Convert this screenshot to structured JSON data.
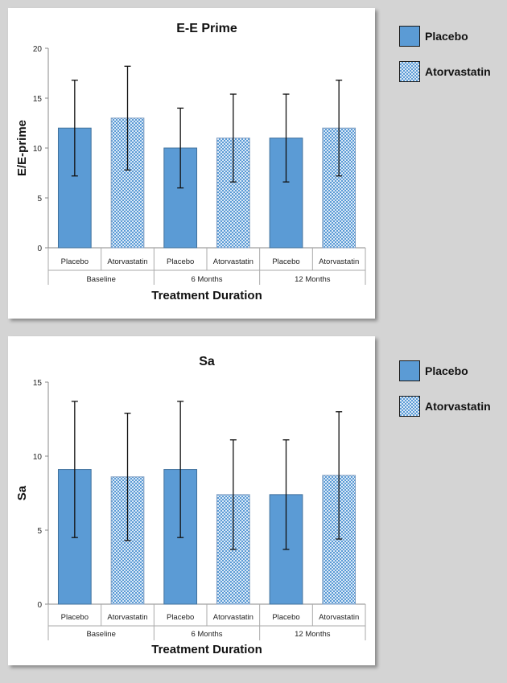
{
  "colors": {
    "placebo": "#5b9bd5",
    "placebo_edge": "#41719c",
    "atorvastatin_fill": "#dbe9f7",
    "atorvastatin_pattern": "#5b9bd5",
    "atorvastatin_edge": "#7f9dc1"
  },
  "legend": {
    "placebo_label": "Placebo",
    "atorvastatin_label": "Atorvastatin"
  },
  "chart_data": [
    {
      "type": "bar",
      "title": "E-E Prime",
      "xlabel": "Treatment Duration",
      "ylabel": "E/E-prime",
      "ylim": [
        0,
        20
      ],
      "yticks": [
        0,
        5,
        10,
        15,
        20
      ],
      "groups": [
        "Baseline",
        "6 Months",
        "12 Months"
      ],
      "categories": [
        "Placebo",
        "Atorvastatin",
        "Placebo",
        "Atorvastatin",
        "Placebo",
        "Atorvastatin"
      ],
      "series_order": [
        "placebo",
        "atorvastatin",
        "placebo",
        "atorvastatin",
        "placebo",
        "atorvastatin"
      ],
      "values": [
        12,
        13,
        10,
        11,
        11,
        12
      ],
      "error": [
        4.8,
        5.2,
        4.0,
        4.4,
        4.4,
        4.8
      ]
    },
    {
      "type": "bar",
      "title": "Sa",
      "xlabel": "Treatment Duration",
      "ylabel": "Sa",
      "ylim": [
        0,
        15
      ],
      "yticks": [
        0,
        5,
        10,
        15
      ],
      "groups": [
        "Baseline",
        "6 Months",
        "12 Months"
      ],
      "categories": [
        "Placebo",
        "Atorvastatin",
        "Placebo",
        "Atorvastatin",
        "Placebo",
        "Atorvastatin"
      ],
      "series_order": [
        "placebo",
        "atorvastatin",
        "placebo",
        "atorvastatin",
        "placebo",
        "atorvastatin"
      ],
      "values": [
        9.1,
        8.6,
        9.1,
        7.4,
        7.4,
        8.7
      ],
      "error": [
        4.6,
        4.3,
        4.6,
        3.7,
        3.7,
        4.3
      ]
    }
  ]
}
